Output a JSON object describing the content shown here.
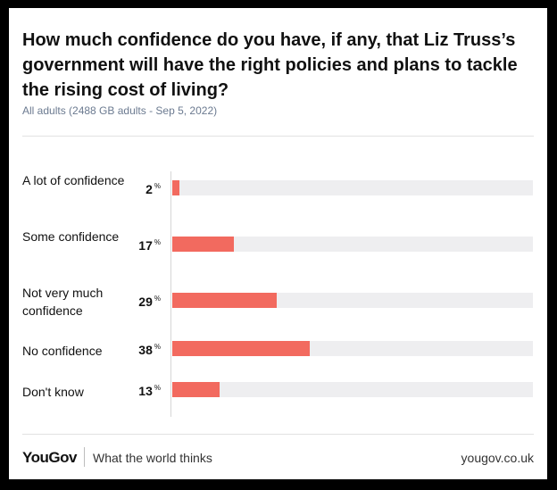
{
  "title": "How much confidence do you have, if any, that Liz Truss’s government will have the right policies and plans to tackle the rising cost of living?",
  "subtitle": "All adults (2488 GB adults - Sep 5, 2022)",
  "colors": {
    "bar": "#f26a5f",
    "track": "#eeeef0"
  },
  "chart_data": {
    "type": "bar",
    "orientation": "horizontal",
    "categories": [
      "A lot of confidence",
      "Some confidence",
      "Not very much confidence",
      "No confidence",
      "Don't know"
    ],
    "values": [
      2,
      17,
      29,
      38,
      13
    ],
    "unit": "%",
    "xlim": [
      0,
      100
    ],
    "grid": false,
    "legend": "none"
  },
  "rows": [
    {
      "label": "A lot of confidence",
      "value": "2"
    },
    {
      "label": "Some confidence",
      "value": "17"
    },
    {
      "label": "Not very much confidence",
      "value": "29"
    },
    {
      "label": "No confidence",
      "value": "38"
    },
    {
      "label": "Don't know",
      "value": "13"
    }
  ],
  "value_unit": "%",
  "footer": {
    "brand": "YouGov",
    "tagline": "What the world thinks",
    "site": "yougov.co.uk"
  }
}
